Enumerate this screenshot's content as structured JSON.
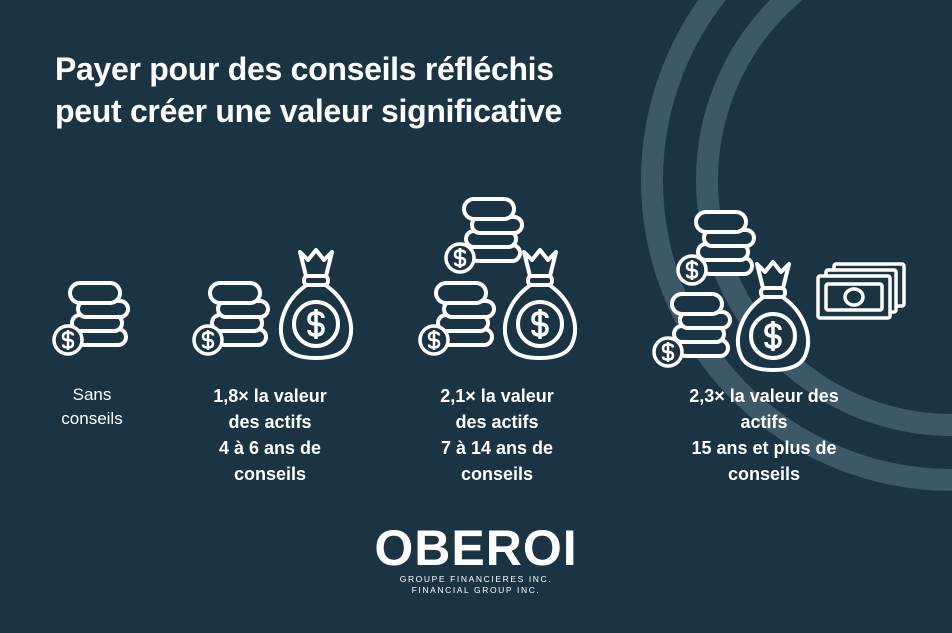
{
  "header": {
    "title": [
      "Payer pour des conseils réfléchis",
      "peut créer une valeur significative"
    ]
  },
  "columns": [
    {
      "lines": [
        "Sans",
        "conseils"
      ]
    },
    {
      "lines": [
        "1,8× la valeur",
        "des actifs",
        "4 à 6 ans de",
        "conseils"
      ]
    },
    {
      "lines": [
        "2,1× la valeur",
        "des actifs",
        "7 à 14 ans de",
        "conseils"
      ]
    },
    {
      "lines": [
        "2,3× la valeur des",
        "actifs",
        "15 ans et plus de",
        "conseils"
      ]
    }
  ],
  "logo": {
    "name": "OBEROI",
    "lines": [
      "GROUPE FINANCIERES INC.",
      "FINANCIAL GROUP INC."
    ]
  }
}
